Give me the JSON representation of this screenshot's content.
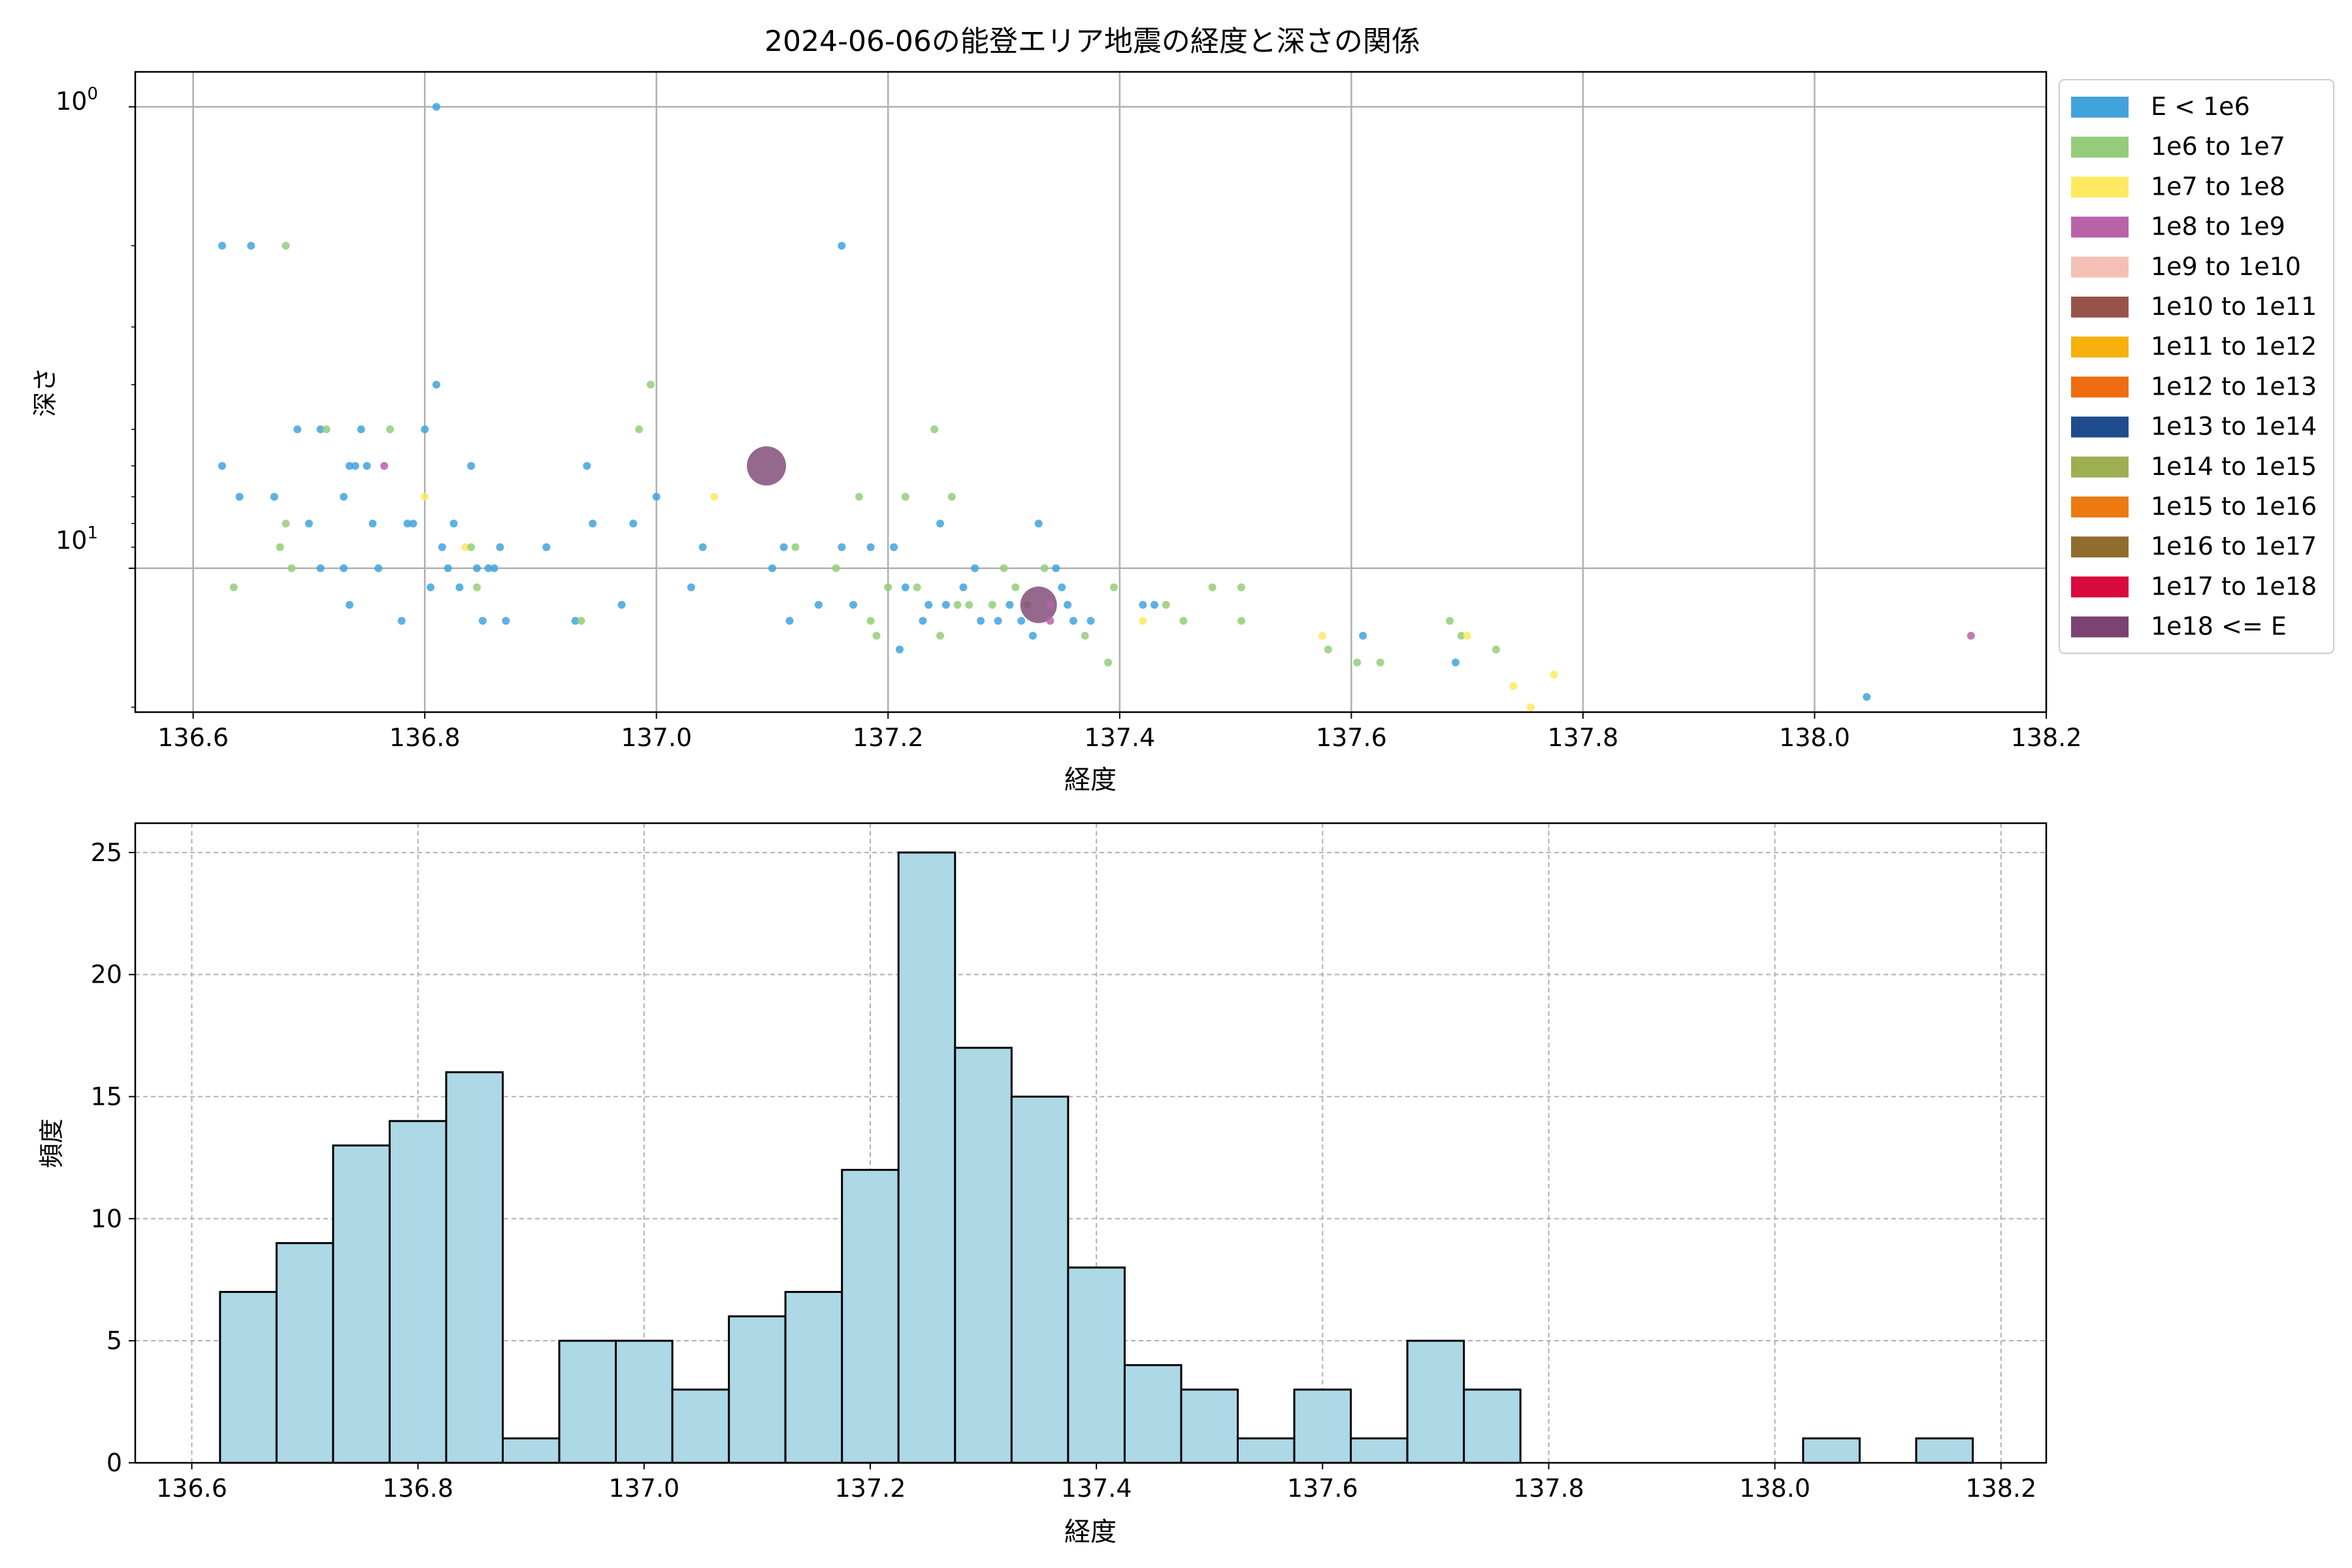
{
  "figure": {
    "title": "2024-06-06の能登エリア地震の経度と深さの関係"
  },
  "chart_data": [
    {
      "type": "scatter",
      "xlabel": "経度",
      "ylabel": "深さ",
      "yscale": "log",
      "ytick_labels": [
        "10^0",
        "10^1"
      ],
      "xlim": [
        136.55,
        138.2
      ],
      "ylim": [
        20.5,
        0.84
      ],
      "xticks": [
        "136.6",
        "136.8",
        "137.0",
        "137.2",
        "137.4",
        "137.6",
        "137.8",
        "138.0",
        "138.2"
      ],
      "grid": true,
      "legend_position": "outside-right",
      "legend": [
        {
          "label": "E < 1e6",
          "color": "#41a3dc"
        },
        {
          "label": "1e6 to 1e7",
          "color": "#95cc7a"
        },
        {
          "label": "1e7 to 1e8",
          "color": "#fdea60"
        },
        {
          "label": "1e8 to 1e9",
          "color": "#b962a8"
        },
        {
          "label": "1e9 to 1e10",
          "color": "#f4c0b6"
        },
        {
          "label": "1e10 to 1e11",
          "color": "#97534b"
        },
        {
          "label": "1e11 to 1e12",
          "color": "#f6b10d"
        },
        {
          "label": "1e12 to 1e13",
          "color": "#ef6c10"
        },
        {
          "label": "1e13 to 1e14",
          "color": "#1e4c8d"
        },
        {
          "label": "1e14 to 1e15",
          "color": "#9eae53"
        },
        {
          "label": "1e15 to 1e16",
          "color": "#ec7a10"
        },
        {
          "label": "1e16 to 1e17",
          "color": "#906c2f"
        },
        {
          "label": "1e17 to 1e18",
          "color": "#d80a3e"
        },
        {
          "label": "1e18 <= E",
          "color": "#7a4371"
        }
      ],
      "points": [
        {
          "x": 136.625,
          "y": 2,
          "c": 0,
          "s": 1
        },
        {
          "x": 136.65,
          "y": 2,
          "c": 0,
          "s": 1
        },
        {
          "x": 136.68,
          "y": 2,
          "c": 1,
          "s": 1
        },
        {
          "x": 136.81,
          "y": 1,
          "c": 0,
          "s": 1
        },
        {
          "x": 137.16,
          "y": 2,
          "c": 0,
          "s": 1
        },
        {
          "x": 136.625,
          "y": 6,
          "c": 0,
          "s": 1
        },
        {
          "x": 136.64,
          "y": 7,
          "c": 0,
          "s": 1
        },
        {
          "x": 136.635,
          "y": 11,
          "c": 1,
          "s": 1
        },
        {
          "x": 136.67,
          "y": 7,
          "c": 0,
          "s": 1
        },
        {
          "x": 136.675,
          "y": 9,
          "c": 1,
          "s": 1
        },
        {
          "x": 136.68,
          "y": 8,
          "c": 1,
          "s": 1
        },
        {
          "x": 136.685,
          "y": 10,
          "c": 1,
          "s": 1
        },
        {
          "x": 136.69,
          "y": 5,
          "c": 0,
          "s": 1
        },
        {
          "x": 136.7,
          "y": 8,
          "c": 0,
          "s": 1
        },
        {
          "x": 136.71,
          "y": 5,
          "c": 0,
          "s": 1
        },
        {
          "x": 136.715,
          "y": 5,
          "c": 1,
          "s": 1
        },
        {
          "x": 136.71,
          "y": 10,
          "c": 0,
          "s": 1
        },
        {
          "x": 136.73,
          "y": 7,
          "c": 0,
          "s": 1
        },
        {
          "x": 136.735,
          "y": 6,
          "c": 0,
          "s": 1
        },
        {
          "x": 136.73,
          "y": 10,
          "c": 0,
          "s": 1
        },
        {
          "x": 136.74,
          "y": 6,
          "c": 0,
          "s": 1
        },
        {
          "x": 136.745,
          "y": 5,
          "c": 0,
          "s": 1
        },
        {
          "x": 136.75,
          "y": 6,
          "c": 0,
          "s": 1
        },
        {
          "x": 136.755,
          "y": 8,
          "c": 0,
          "s": 1
        },
        {
          "x": 136.735,
          "y": 12,
          "c": 0,
          "s": 1
        },
        {
          "x": 136.76,
          "y": 10,
          "c": 0,
          "s": 1
        },
        {
          "x": 136.765,
          "y": 6,
          "c": 3,
          "s": 1
        },
        {
          "x": 136.77,
          "y": 5,
          "c": 1,
          "s": 1
        },
        {
          "x": 136.78,
          "y": 13,
          "c": 0,
          "s": 1
        },
        {
          "x": 136.785,
          "y": 8,
          "c": 0,
          "s": 1
        },
        {
          "x": 136.79,
          "y": 8,
          "c": 0,
          "s": 1
        },
        {
          "x": 136.8,
          "y": 5,
          "c": 0,
          "s": 1
        },
        {
          "x": 136.8,
          "y": 7,
          "c": 2,
          "s": 1
        },
        {
          "x": 136.805,
          "y": 11,
          "c": 0,
          "s": 1
        },
        {
          "x": 136.81,
          "y": 4,
          "c": 0,
          "s": 1
        },
        {
          "x": 136.815,
          "y": 9,
          "c": 0,
          "s": 1
        },
        {
          "x": 136.82,
          "y": 10,
          "c": 0,
          "s": 1
        },
        {
          "x": 136.825,
          "y": 8,
          "c": 0,
          "s": 1
        },
        {
          "x": 136.83,
          "y": 11,
          "c": 0,
          "s": 1
        },
        {
          "x": 136.835,
          "y": 9,
          "c": 2,
          "s": 1
        },
        {
          "x": 136.84,
          "y": 6,
          "c": 0,
          "s": 1
        },
        {
          "x": 136.84,
          "y": 9,
          "c": 1,
          "s": 1
        },
        {
          "x": 136.845,
          "y": 10,
          "c": 0,
          "s": 1
        },
        {
          "x": 136.85,
          "y": 13,
          "c": 0,
          "s": 1
        },
        {
          "x": 136.845,
          "y": 11,
          "c": 1,
          "s": 1
        },
        {
          "x": 136.855,
          "y": 10,
          "c": 0,
          "s": 1
        },
        {
          "x": 136.86,
          "y": 10,
          "c": 0,
          "s": 1
        },
        {
          "x": 136.865,
          "y": 9,
          "c": 0,
          "s": 1
        },
        {
          "x": 136.87,
          "y": 13,
          "c": 0,
          "s": 1
        },
        {
          "x": 136.905,
          "y": 9,
          "c": 0,
          "s": 1
        },
        {
          "x": 136.93,
          "y": 13,
          "c": 0,
          "s": 1
        },
        {
          "x": 136.935,
          "y": 13,
          "c": 1,
          "s": 1
        },
        {
          "x": 136.94,
          "y": 6,
          "c": 0,
          "s": 1
        },
        {
          "x": 136.945,
          "y": 8,
          "c": 0,
          "s": 1
        },
        {
          "x": 136.97,
          "y": 12,
          "c": 0,
          "s": 1
        },
        {
          "x": 136.98,
          "y": 8,
          "c": 0,
          "s": 1
        },
        {
          "x": 136.985,
          "y": 5,
          "c": 1,
          "s": 1
        },
        {
          "x": 136.995,
          "y": 4,
          "c": 1,
          "s": 1
        },
        {
          "x": 137.0,
          "y": 7,
          "c": 0,
          "s": 1
        },
        {
          "x": 137.03,
          "y": 11,
          "c": 0,
          "s": 1
        },
        {
          "x": 137.04,
          "y": 9,
          "c": 0,
          "s": 1
        },
        {
          "x": 137.05,
          "y": 7,
          "c": 2,
          "s": 1
        },
        {
          "x": 137.095,
          "y": 6,
          "c": 13,
          "s": 3
        },
        {
          "x": 137.1,
          "y": 10,
          "c": 0,
          "s": 1
        },
        {
          "x": 137.11,
          "y": 9,
          "c": 0,
          "s": 1
        },
        {
          "x": 137.115,
          "y": 13,
          "c": 0,
          "s": 1
        },
        {
          "x": 137.12,
          "y": 9,
          "c": 1,
          "s": 1
        },
        {
          "x": 137.14,
          "y": 12,
          "c": 0,
          "s": 1
        },
        {
          "x": 137.155,
          "y": 10,
          "c": 1,
          "s": 1
        },
        {
          "x": 137.16,
          "y": 9,
          "c": 0,
          "s": 1
        },
        {
          "x": 137.17,
          "y": 12,
          "c": 0,
          "s": 1
        },
        {
          "x": 137.175,
          "y": 7,
          "c": 1,
          "s": 1
        },
        {
          "x": 137.185,
          "y": 9,
          "c": 0,
          "s": 1
        },
        {
          "x": 137.185,
          "y": 13,
          "c": 1,
          "s": 1
        },
        {
          "x": 137.19,
          "y": 14,
          "c": 1,
          "s": 1
        },
        {
          "x": 137.2,
          "y": 11,
          "c": 1,
          "s": 1
        },
        {
          "x": 137.205,
          "y": 9,
          "c": 0,
          "s": 1
        },
        {
          "x": 137.21,
          "y": 15,
          "c": 0,
          "s": 1
        },
        {
          "x": 137.215,
          "y": 7,
          "c": 1,
          "s": 1
        },
        {
          "x": 137.215,
          "y": 11,
          "c": 0,
          "s": 1
        },
        {
          "x": 137.225,
          "y": 11,
          "c": 1,
          "s": 1
        },
        {
          "x": 137.23,
          "y": 13,
          "c": 0,
          "s": 1
        },
        {
          "x": 137.235,
          "y": 12,
          "c": 0,
          "s": 1
        },
        {
          "x": 137.24,
          "y": 5,
          "c": 1,
          "s": 1
        },
        {
          "x": 137.245,
          "y": 8,
          "c": 0,
          "s": 1
        },
        {
          "x": 137.245,
          "y": 14,
          "c": 1,
          "s": 1
        },
        {
          "x": 137.25,
          "y": 12,
          "c": 0,
          "s": 1
        },
        {
          "x": 137.255,
          "y": 7,
          "c": 1,
          "s": 1
        },
        {
          "x": 137.26,
          "y": 12,
          "c": 1,
          "s": 1
        },
        {
          "x": 137.265,
          "y": 11,
          "c": 0,
          "s": 1
        },
        {
          "x": 137.27,
          "y": 12,
          "c": 1,
          "s": 1
        },
        {
          "x": 137.275,
          "y": 10,
          "c": 0,
          "s": 1
        },
        {
          "x": 137.28,
          "y": 13,
          "c": 0,
          "s": 1
        },
        {
          "x": 137.29,
          "y": 12,
          "c": 1,
          "s": 1
        },
        {
          "x": 137.295,
          "y": 13,
          "c": 0,
          "s": 1
        },
        {
          "x": 137.3,
          "y": 10,
          "c": 1,
          "s": 1
        },
        {
          "x": 137.305,
          "y": 12,
          "c": 0,
          "s": 1
        },
        {
          "x": 137.31,
          "y": 11,
          "c": 1,
          "s": 1
        },
        {
          "x": 137.315,
          "y": 13,
          "c": 0,
          "s": 1
        },
        {
          "x": 137.32,
          "y": 12,
          "c": 1,
          "s": 1
        },
        {
          "x": 137.325,
          "y": 14,
          "c": 0,
          "s": 1
        },
        {
          "x": 137.33,
          "y": 8,
          "c": 0,
          "s": 1
        },
        {
          "x": 137.33,
          "y": 12,
          "c": 13,
          "s": 2
        },
        {
          "x": 137.335,
          "y": 10,
          "c": 1,
          "s": 1
        },
        {
          "x": 137.34,
          "y": 12,
          "c": 3,
          "s": 1
        },
        {
          "x": 137.34,
          "y": 13,
          "c": 3,
          "s": 1
        },
        {
          "x": 137.345,
          "y": 10,
          "c": 0,
          "s": 1
        },
        {
          "x": 137.35,
          "y": 11,
          "c": 0,
          "s": 1
        },
        {
          "x": 137.355,
          "y": 12,
          "c": 0,
          "s": 1
        },
        {
          "x": 137.36,
          "y": 13,
          "c": 0,
          "s": 1
        },
        {
          "x": 137.37,
          "y": 14,
          "c": 1,
          "s": 1
        },
        {
          "x": 137.375,
          "y": 13,
          "c": 0,
          "s": 1
        },
        {
          "x": 137.39,
          "y": 16,
          "c": 1,
          "s": 1
        },
        {
          "x": 137.395,
          "y": 11,
          "c": 1,
          "s": 1
        },
        {
          "x": 137.42,
          "y": 12,
          "c": 0,
          "s": 1
        },
        {
          "x": 137.42,
          "y": 13,
          "c": 2,
          "s": 1
        },
        {
          "x": 137.43,
          "y": 12,
          "c": 0,
          "s": 1
        },
        {
          "x": 137.44,
          "y": 12,
          "c": 1,
          "s": 1
        },
        {
          "x": 137.455,
          "y": 13,
          "c": 1,
          "s": 1
        },
        {
          "x": 137.48,
          "y": 11,
          "c": 1,
          "s": 1
        },
        {
          "x": 137.505,
          "y": 11,
          "c": 1,
          "s": 1
        },
        {
          "x": 137.505,
          "y": 13,
          "c": 1,
          "s": 1
        },
        {
          "x": 137.575,
          "y": 14,
          "c": 2,
          "s": 1
        },
        {
          "x": 137.58,
          "y": 15,
          "c": 1,
          "s": 1
        },
        {
          "x": 137.605,
          "y": 16,
          "c": 1,
          "s": 1
        },
        {
          "x": 137.61,
          "y": 14,
          "c": 0,
          "s": 1
        },
        {
          "x": 137.625,
          "y": 16,
          "c": 1,
          "s": 1
        },
        {
          "x": 137.685,
          "y": 13,
          "c": 1,
          "s": 1
        },
        {
          "x": 137.69,
          "y": 16,
          "c": 0,
          "s": 1
        },
        {
          "x": 137.695,
          "y": 14,
          "c": 1,
          "s": 1
        },
        {
          "x": 137.7,
          "y": 14,
          "c": 2,
          "s": 1
        },
        {
          "x": 137.725,
          "y": 15,
          "c": 1,
          "s": 1
        },
        {
          "x": 137.74,
          "y": 18,
          "c": 2,
          "s": 1
        },
        {
          "x": 137.755,
          "y": 20,
          "c": 2,
          "s": 1
        },
        {
          "x": 137.775,
          "y": 17,
          "c": 2,
          "s": 1
        },
        {
          "x": 138.045,
          "y": 19,
          "c": 0,
          "s": 1
        },
        {
          "x": 138.135,
          "y": 14,
          "c": 3,
          "s": 1
        }
      ]
    },
    {
      "type": "bar",
      "subtype": "histogram",
      "xlabel": "経度",
      "ylabel": "頻度",
      "xlim": [
        136.55,
        138.24
      ],
      "ylim": [
        0,
        26.2
      ],
      "xticks": [
        "136.6",
        "136.8",
        "137.0",
        "137.2",
        "137.4",
        "137.6",
        "137.8",
        "138.0",
        "138.2"
      ],
      "yticks": [
        "0",
        "5",
        "10",
        "15",
        "20",
        "25"
      ],
      "grid": true,
      "bar_color": "#add8e6",
      "bin_edges": [
        136.625,
        136.675,
        136.725,
        136.775,
        136.825,
        136.875,
        136.925,
        136.975,
        137.025,
        137.075,
        137.125,
        137.175,
        137.225,
        137.275,
        137.325,
        137.375,
        137.425,
        137.475,
        137.525,
        137.575,
        137.625,
        137.675,
        137.725,
        137.775,
        137.825,
        137.875,
        137.925,
        137.975,
        138.025,
        138.075,
        138.125,
        138.175
      ],
      "values": [
        7,
        9,
        13,
        14,
        16,
        1,
        5,
        5,
        3,
        6,
        7,
        12,
        25,
        17,
        15,
        8,
        4,
        3,
        1,
        3,
        1,
        5,
        3,
        0,
        0,
        0,
        0,
        0,
        1,
        0,
        1
      ]
    }
  ]
}
